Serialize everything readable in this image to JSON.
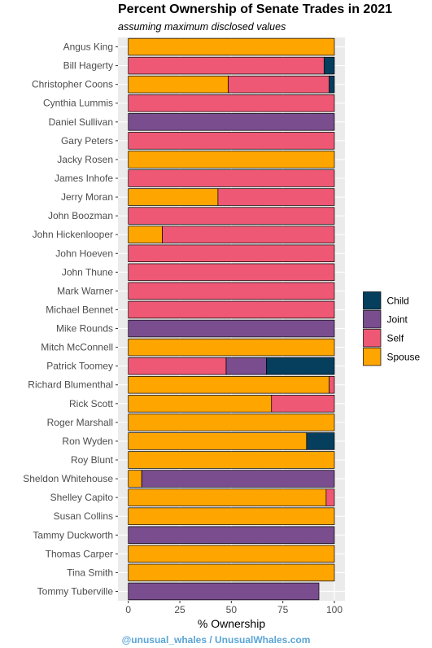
{
  "title": "Percent Ownership of Senate Trades in 2021",
  "subtitle": "assuming maximum disclosed values",
  "credit": "@unusual_whales / UnusualWhales.com",
  "chart_data": {
    "type": "bar",
    "orientation": "horizontal",
    "stacked": true,
    "xlabel": "% Ownership",
    "ylabel": "",
    "xlim": [
      0,
      100
    ],
    "xticks": [
      0,
      25,
      50,
      75,
      100
    ],
    "grid": true,
    "legend_position": "right",
    "categories": [
      "Angus King",
      "Bill Hagerty",
      "Christopher Coons",
      "Cynthia Lummis",
      "Daniel Sullivan",
      "Gary Peters",
      "Jacky Rosen",
      "James Inhofe",
      "Jerry Moran",
      "John Boozman",
      "John Hickenlooper",
      "John Hoeven",
      "John Thune",
      "Mark Warner",
      "Michael Bennet",
      "Mike Rounds",
      "Mitch McConnell",
      "Patrick Toomey",
      "Richard Blumenthal",
      "Rick Scott",
      "Roger Marshall",
      "Ron Wyden",
      "Roy Blunt",
      "Sheldon Whitehouse",
      "Shelley Capito",
      "Susan Collins",
      "Tammy Duckworth",
      "Thomas Carper",
      "Tina Smith",
      "Tommy Tuberville"
    ],
    "series": [
      {
        "name": "Spouse",
        "color": "#ffa500",
        "values": [
          100,
          0,
          48.5,
          0,
          0,
          0,
          100,
          0,
          43.5,
          0,
          16.5,
          0,
          0,
          0,
          0,
          0,
          100,
          0,
          97.5,
          69.5,
          100,
          86.5,
          100,
          6.5,
          96,
          100,
          0,
          100,
          100,
          0
        ]
      },
      {
        "name": "Self",
        "color": "#ee5874",
        "values": [
          0,
          95,
          49,
          100,
          0,
          100,
          0,
          100,
          56.5,
          100,
          83.5,
          100,
          100,
          100,
          100,
          0,
          0,
          47.5,
          2.5,
          30.5,
          0,
          0,
          0,
          0,
          4,
          0,
          0,
          0,
          0,
          0
        ]
      },
      {
        "name": "Joint",
        "color": "#7a4d8f",
        "values": [
          0,
          0,
          0,
          0,
          100,
          0,
          0,
          0,
          0,
          0,
          0,
          0,
          0,
          0,
          0,
          100,
          0,
          19.5,
          0,
          0,
          0,
          0,
          0,
          93.5,
          0,
          0,
          100,
          0,
          0,
          92.5
        ]
      },
      {
        "name": "Child",
        "color": "#063e5e",
        "values": [
          0,
          5,
          2.5,
          0,
          0,
          0,
          0,
          0,
          0,
          0,
          0,
          0,
          0,
          0,
          0,
          0,
          0,
          33,
          0,
          0,
          0,
          13.5,
          0,
          0,
          0,
          0,
          0,
          0,
          0,
          0
        ]
      }
    ],
    "legend_order": [
      "Child",
      "Joint",
      "Self",
      "Spouse"
    ]
  }
}
